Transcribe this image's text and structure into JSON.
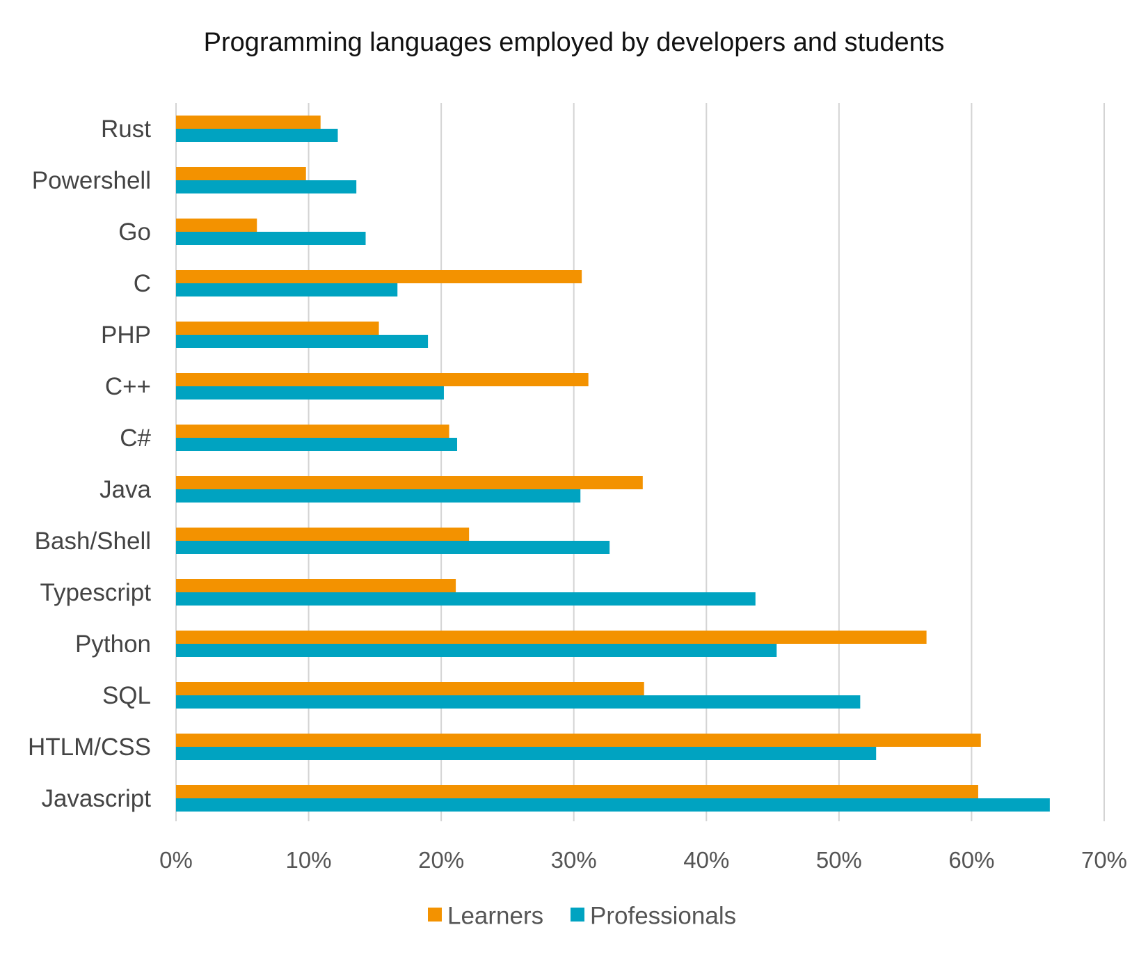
{
  "chart_data": {
    "type": "bar",
    "orientation": "horizontal",
    "title": "Programming languages employed by developers and students",
    "xlabel": "",
    "ylabel": "",
    "xlim": [
      0,
      70
    ],
    "x_ticks": [
      0,
      10,
      20,
      30,
      40,
      50,
      60,
      70
    ],
    "x_tick_labels": [
      "0%",
      "10%",
      "20%",
      "30%",
      "40%",
      "50%",
      "60%",
      "70%"
    ],
    "grid": "vertical",
    "legend_position": "bottom",
    "categories": [
      "Rust",
      "Powershell",
      "Go",
      "C",
      "PHP",
      "C++",
      "C#",
      "Java",
      "Bash/Shell",
      "Typescript",
      "Python",
      "SQL",
      "HTLM/CSS",
      "Javascript"
    ],
    "series": [
      {
        "name": "Learners",
        "color": "#f39200",
        "values": [
          10.9,
          9.8,
          6.1,
          30.6,
          15.3,
          31.1,
          20.6,
          35.2,
          22.1,
          21.1,
          56.6,
          35.3,
          60.7,
          60.5
        ]
      },
      {
        "name": "Professionals",
        "color": "#00a3c1",
        "values": [
          12.2,
          13.6,
          14.3,
          16.7,
          19.0,
          20.2,
          21.2,
          30.5,
          32.7,
          43.7,
          45.3,
          51.6,
          52.8,
          65.9
        ]
      }
    ]
  }
}
